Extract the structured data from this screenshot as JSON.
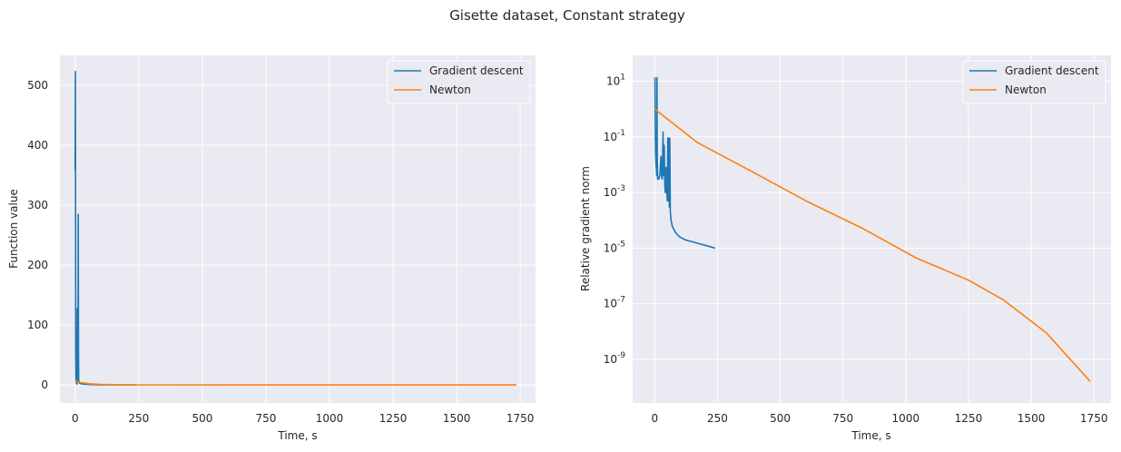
{
  "figure": {
    "suptitle": "Gisette dataset, Constant strategy",
    "colors": {
      "background": "#eaeaf2",
      "grid": "#ffffff",
      "gradient_descent": "#1f77b4",
      "newton": "#ff7f0e"
    }
  },
  "chart_data": [
    {
      "type": "line",
      "xlabel": "Time, s",
      "ylabel": "Function value",
      "xlim": [
        -60,
        1810
      ],
      "ylim": [
        -30,
        550
      ],
      "xticks": [
        0,
        250,
        500,
        750,
        1000,
        1250,
        1500,
        1750
      ],
      "yticks": [
        0,
        100,
        200,
        300,
        400,
        500
      ],
      "grid": true,
      "legend_loc": "upper right",
      "series": [
        {
          "name": "Gradient descent",
          "color": "#1f77b4",
          "x": [
            0,
            1,
            2,
            3,
            4,
            5,
            6,
            7,
            8,
            9,
            10,
            11,
            12,
            13,
            14,
            15,
            16,
            17,
            20,
            25,
            30,
            40,
            50,
            60,
            80,
            100,
            130,
            170,
            200,
            240
          ],
          "y": [
            360,
            523,
            50,
            8,
            5,
            3,
            2,
            1.5,
            128,
            95,
            10,
            5,
            285,
            50,
            10,
            6,
            4,
            3,
            2.5,
            2,
            1.6,
            1.2,
            1,
            0.8,
            0.6,
            0.5,
            0.4,
            0.35,
            0.3,
            0.3
          ]
        },
        {
          "name": "Newton",
          "color": "#ff7f0e",
          "x": [
            0,
            20,
            40,
            60,
            100,
            150,
            200,
            250,
            400,
            600,
            800,
            1000,
            1200,
            1400,
            1600,
            1735
          ],
          "y": [
            7,
            4,
            3,
            2,
            1,
            0.6,
            0.4,
            0.3,
            0.25,
            0.2,
            0.2,
            0.2,
            0.2,
            0.2,
            0.2,
            0.2
          ]
        }
      ]
    },
    {
      "type": "line",
      "xlabel": "Time, s",
      "ylabel": "Relative gradient norm",
      "yscale": "log",
      "xlim": [
        -88,
        1818
      ],
      "ylim_log10": [
        -10.57,
        1.93
      ],
      "xticks": [
        0,
        250,
        500,
        750,
        1000,
        1250,
        1500,
        1750
      ],
      "yticks_log10": [
        1,
        -1,
        -3,
        -5,
        -7,
        -9
      ],
      "ytick_base": "10",
      "grid": true,
      "legend_loc": "upper right",
      "series": [
        {
          "name": "Gradient descent",
          "color": "#1f77b4",
          "x": [
            0,
            1,
            2,
            3,
            5,
            7,
            8,
            9,
            10,
            11,
            12,
            14,
            16,
            20,
            25,
            27,
            30,
            33,
            35,
            36,
            38,
            40,
            42,
            45,
            48,
            50,
            52,
            55,
            57,
            58,
            60,
            62,
            65,
            70,
            80,
            90,
            100,
            120,
            240
          ],
          "y": [
            13.5,
            13.5,
            0.2,
            0.03,
            0.01,
            0.006,
            0.004,
            13.5,
            0.02,
            0.005,
            0.003,
            0.0035,
            0.003,
            0.004,
            0.02,
            0.004,
            0.003,
            0.15,
            0.01,
            0.004,
            0.05,
            0.002,
            0.001,
            0.008,
            0.001,
            0.0005,
            0.09,
            0.0005,
            0.09,
            0.0003,
            0.09,
            0.0002,
            0.0001,
            6e-05,
            4e-05,
            3e-05,
            2.5e-05,
            2e-05,
            1e-05
          ]
        },
        {
          "name": "Newton",
          "color": "#ff7f0e",
          "x": [
            0,
            170,
            390,
            610,
            830,
            1040,
            1250,
            1390,
            1560,
            1735
          ],
          "y": [
            1.0,
            0.062,
            0.0055,
            0.00046,
            5e-05,
            4.5e-06,
            7e-07,
            1.35e-07,
            9e-09,
            1.6e-10
          ]
        }
      ]
    }
  ]
}
